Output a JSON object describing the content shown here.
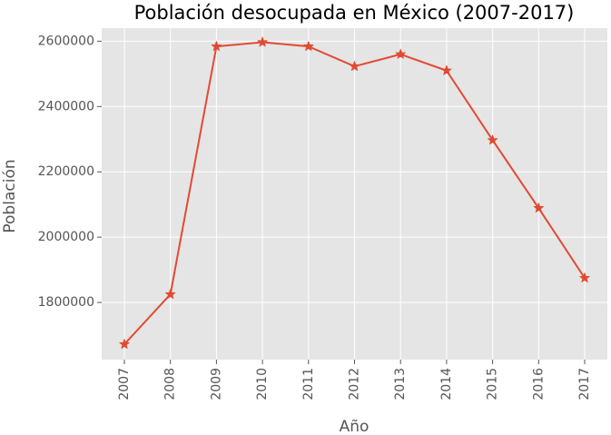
{
  "chart_data": {
    "type": "line",
    "title": "Población desocupada en México (2007-2017)",
    "xlabel": "Año",
    "ylabel": "Población",
    "x": [
      "2007",
      "2008",
      "2009",
      "2010",
      "2011",
      "2012",
      "2013",
      "2014",
      "2015",
      "2016",
      "2017"
    ],
    "series": [
      {
        "values": [
          1672000,
          1825000,
          2584000,
          2597000,
          2584000,
          2523000,
          2560000,
          2510000,
          2297000,
          2089000,
          1875000
        ],
        "color": "#e24a33",
        "marker": "star"
      }
    ],
    "yticks": [
      1800000,
      2000000,
      2200000,
      2400000,
      2600000
    ],
    "ylim": [
      1625000,
      2640000
    ],
    "grid": true,
    "background": "#e5e5e5",
    "grid_color": "#ffffff"
  }
}
